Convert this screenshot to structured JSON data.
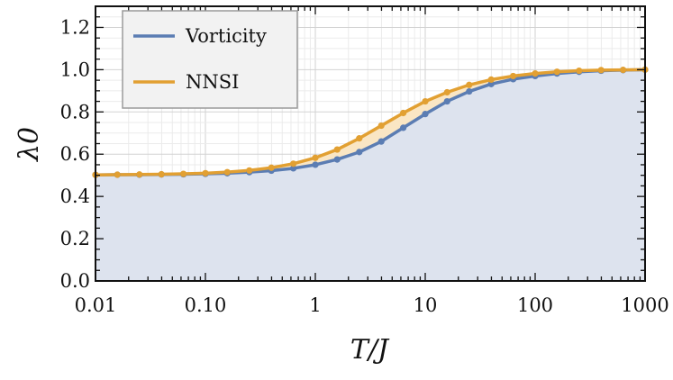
{
  "chart_data": {
    "type": "line",
    "xlabel": "T/J",
    "ylabel": "λ0",
    "x_scale": "log",
    "xlim": [
      0.01,
      1000
    ],
    "ylim": [
      0.0,
      1.3
    ],
    "grid": true,
    "legend_position": "top-left",
    "x_tick_labels": [
      {
        "value": 0.01,
        "label": "0.01"
      },
      {
        "value": 0.1,
        "label": "0.10"
      },
      {
        "value": 1,
        "label": "1"
      },
      {
        "value": 10,
        "label": "10"
      },
      {
        "value": 100,
        "label": "100"
      },
      {
        "value": 1000,
        "label": "1000"
      }
    ],
    "y_tick_labels": [
      {
        "value": 0.0,
        "label": "0.0"
      },
      {
        "value": 0.2,
        "label": "0.2"
      },
      {
        "value": 0.4,
        "label": "0.4"
      },
      {
        "value": 0.6,
        "label": "0.6"
      },
      {
        "value": 0.8,
        "label": "0.8"
      },
      {
        "value": 1.0,
        "label": "1.0"
      },
      {
        "value": 1.2,
        "label": "1.2"
      }
    ],
    "x": [
      0.01,
      0.0158,
      0.0251,
      0.0398,
      0.0631,
      0.1,
      0.158,
      0.251,
      0.398,
      0.631,
      1,
      1.58,
      2.51,
      3.98,
      6.31,
      10,
      15.8,
      25.1,
      39.8,
      63.1,
      100,
      158,
      251,
      398,
      631,
      1000
    ],
    "series": [
      {
        "name": "Vorticity",
        "color": "#5b7db3",
        "fill": "#dde3ee",
        "values": [
          0.502,
          0.503,
          0.503,
          0.504,
          0.505,
          0.507,
          0.51,
          0.515,
          0.522,
          0.533,
          0.55,
          0.575,
          0.61,
          0.66,
          0.725,
          0.79,
          0.85,
          0.897,
          0.932,
          0.955,
          0.97,
          0.982,
          0.99,
          0.995,
          0.998,
          1.0
        ]
      },
      {
        "name": "NNSI",
        "color": "#e2a032",
        "fill": "#fae6c4",
        "values": [
          0.502,
          0.503,
          0.504,
          0.505,
          0.507,
          0.51,
          0.515,
          0.523,
          0.536,
          0.555,
          0.583,
          0.622,
          0.675,
          0.735,
          0.795,
          0.85,
          0.893,
          0.928,
          0.953,
          0.97,
          0.982,
          0.99,
          0.995,
          0.998,
          0.999,
          1.0
        ]
      }
    ]
  }
}
